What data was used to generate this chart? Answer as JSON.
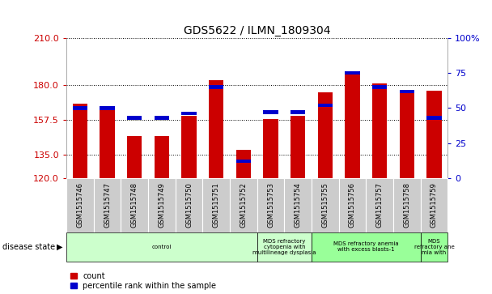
{
  "title": "GDS5622 / ILMN_1809304",
  "samples": [
    "GSM1515746",
    "GSM1515747",
    "GSM1515748",
    "GSM1515749",
    "GSM1515750",
    "GSM1515751",
    "GSM1515752",
    "GSM1515753",
    "GSM1515754",
    "GSM1515755",
    "GSM1515756",
    "GSM1515757",
    "GSM1515758",
    "GSM1515759"
  ],
  "counts": [
    168,
    166,
    147,
    147,
    160,
    183,
    138,
    158,
    160,
    175,
    188,
    181,
    176,
    176
  ],
  "percentiles": [
    50,
    50,
    43,
    43,
    46,
    65,
    12,
    47,
    47,
    52,
    75,
    65,
    62,
    43
  ],
  "ylim_left": [
    120,
    210
  ],
  "ylim_right": [
    0,
    100
  ],
  "yticks_left": [
    120,
    135,
    157.5,
    180,
    210
  ],
  "yticks_right": [
    0,
    25,
    50,
    75,
    100
  ],
  "bar_color": "#cc0000",
  "percentile_color": "#0000cc",
  "bar_width": 0.55,
  "disease_groups": [
    {
      "label": "control",
      "start": 0,
      "end": 7,
      "color": "#ccffcc"
    },
    {
      "label": "MDS refractory\ncytopenia with\nmultilineage dysplasia",
      "start": 7,
      "end": 9,
      "color": "#ccffcc"
    },
    {
      "label": "MDS refractory anemia\nwith excess blasts-1",
      "start": 9,
      "end": 13,
      "color": "#99ff99"
    },
    {
      "label": "MDS\nrefractory ane\nmia with",
      "start": 13,
      "end": 14,
      "color": "#99ff99"
    }
  ],
  "disease_state_label": "disease state",
  "legend_count": "count",
  "legend_percentile": "percentile rank within the sample",
  "background_color": "#ffffff",
  "plot_bg_color": "#ffffff",
  "tick_label_color_left": "#cc0000",
  "tick_label_color_right": "#0000cc",
  "sample_box_color": "#cccccc",
  "title_fontsize": 10
}
